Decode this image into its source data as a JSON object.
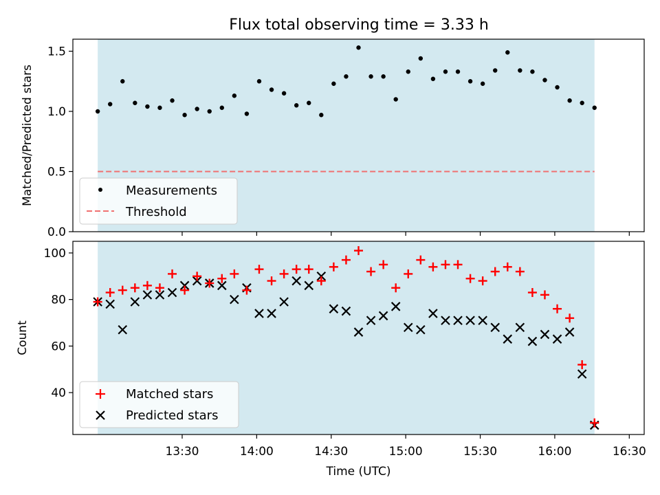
{
  "figure": {
    "title": "Flux total observing time = 3.33 h",
    "xlabel": "Time (UTC)"
  },
  "chart_data": [
    {
      "type": "scatter",
      "panel": "top",
      "title": "Flux total observing time = 3.33 h",
      "ylabel": "Matched/Predicted stars",
      "xlabel": "",
      "x_axis": "shared time axis (minutes since 00:00 UTC)",
      "xlim": [
        766,
        996
      ],
      "ylim": [
        0.0,
        1.6
      ],
      "yticks": [
        "0.0",
        "0.5",
        "1.0",
        "1.5"
      ],
      "shaded_region": [
        776,
        976
      ],
      "shaded_color": "#d3e9f0",
      "grid": false,
      "legend_position": "lower-left",
      "series": [
        {
          "name": "Measurements",
          "marker": "dot",
          "color": "#000000",
          "x": [
            776,
            781,
            786,
            791,
            796,
            801,
            806,
            811,
            816,
            821,
            826,
            831,
            836,
            841,
            846,
            851,
            856,
            861,
            866,
            871,
            876,
            881,
            886,
            891,
            896,
            901,
            906,
            911,
            916,
            921,
            926,
            931,
            936,
            941,
            946,
            951,
            956,
            961,
            966,
            971,
            976
          ],
          "y": [
            1.0,
            1.06,
            1.25,
            1.07,
            1.04,
            1.03,
            1.09,
            0.97,
            1.02,
            1.0,
            1.03,
            1.13,
            0.98,
            1.25,
            1.18,
            1.15,
            1.05,
            1.07,
            0.97,
            1.23,
            1.29,
            1.53,
            1.29,
            1.29,
            1.1,
            1.33,
            1.44,
            1.27,
            1.33,
            1.33,
            1.25,
            1.23,
            1.34,
            1.49,
            1.34,
            1.33,
            1.26,
            1.2,
            1.09,
            1.07,
            1.03
          ]
        },
        {
          "name": "Threshold",
          "style": "dashed",
          "color": "#f07070",
          "x": [
            776,
            976
          ],
          "y": [
            0.5,
            0.5
          ]
        }
      ]
    },
    {
      "type": "scatter",
      "panel": "bottom",
      "ylabel": "Count",
      "xlabel": "Time (UTC)",
      "xlim": [
        766,
        996
      ],
      "ylim": [
        22,
        105
      ],
      "yticks": [
        "40",
        "60",
        "80",
        "100"
      ],
      "xticks": [
        "13:30",
        "14:00",
        "14:30",
        "15:00",
        "15:30",
        "16:00",
        "16:30"
      ],
      "shaded_region": [
        776,
        976
      ],
      "shaded_color": "#d3e9f0",
      "grid": false,
      "legend_position": "lower-left",
      "series": [
        {
          "name": "Matched stars",
          "marker": "plus",
          "color": "#ff0000",
          "x": [
            776,
            781,
            786,
            791,
            796,
            801,
            806,
            811,
            816,
            821,
            826,
            831,
            836,
            841,
            846,
            851,
            856,
            861,
            866,
            871,
            876,
            881,
            886,
            891,
            896,
            901,
            906,
            911,
            916,
            921,
            926,
            931,
            936,
            941,
            946,
            951,
            956,
            961,
            966,
            971,
            976
          ],
          "y": [
            79,
            83,
            84,
            85,
            86,
            85,
            91,
            84,
            90,
            87,
            89,
            91,
            84,
            93,
            88,
            91,
            93,
            93,
            88,
            94,
            97,
            101,
            92,
            95,
            85,
            91,
            97,
            94,
            95,
            95,
            89,
            88,
            92,
            94,
            92,
            83,
            82,
            76,
            72,
            52,
            27
          ]
        },
        {
          "name": "Predicted stars",
          "marker": "x",
          "color": "#000000",
          "x": [
            776,
            781,
            786,
            791,
            796,
            801,
            806,
            811,
            816,
            821,
            826,
            831,
            836,
            841,
            846,
            851,
            856,
            861,
            866,
            871,
            876,
            881,
            886,
            891,
            896,
            901,
            906,
            911,
            916,
            921,
            926,
            931,
            936,
            941,
            946,
            951,
            956,
            961,
            966,
            971,
            976
          ],
          "y": [
            79,
            78,
            67,
            79,
            82,
            82,
            83,
            86,
            88,
            87,
            86,
            80,
            85,
            74,
            74,
            79,
            88,
            86,
            90,
            76,
            75,
            66,
            71,
            73,
            77,
            68,
            67,
            74,
            71,
            71,
            71,
            71,
            68,
            63,
            68,
            62,
            65,
            63,
            66,
            48,
            26
          ]
        }
      ]
    }
  ]
}
